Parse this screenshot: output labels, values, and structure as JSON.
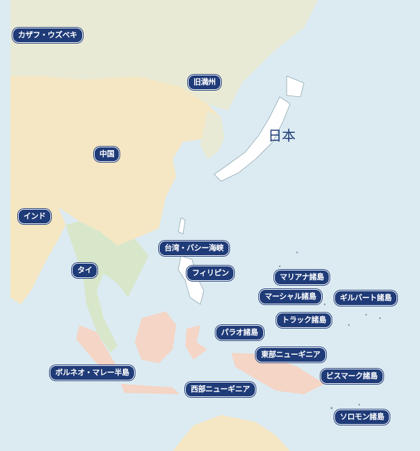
{
  "colors": {
    "ocean": "#dcebf2",
    "land_north": "#e9ead5",
    "land_china": "#f5e6c4",
    "land_india": "#f6e7c3",
    "land_sea": "#d8e7c9",
    "land_japan": "#ffffff",
    "land_indonesia": "#f4d5c6",
    "label_bg": "#1f3b78",
    "label_text": "#ffffff",
    "japan_text": "#1f3b78"
  },
  "labels": {
    "kazakh": "カザフ・ウズベキ",
    "manchuria": "旧満州",
    "china": "中国",
    "india": "インド",
    "thai": "タイ",
    "taiwan": "台湾・バシー海峡",
    "philippines": "フィリピン",
    "mariana": "マリアナ諸島",
    "marshall": "マーシャル諸島",
    "gilbert": "ギルバート諸島",
    "truk": "トラック諸島",
    "palau": "パラオ諸島",
    "east_ng": "東部ニューギニア",
    "borneo": "ボルネオ・マレー半島",
    "bismarck": "ビスマーク諸島",
    "west_ng": "西部ニューギニア",
    "solomon": "ソロモン諸島"
  },
  "japan_label": "日本"
}
